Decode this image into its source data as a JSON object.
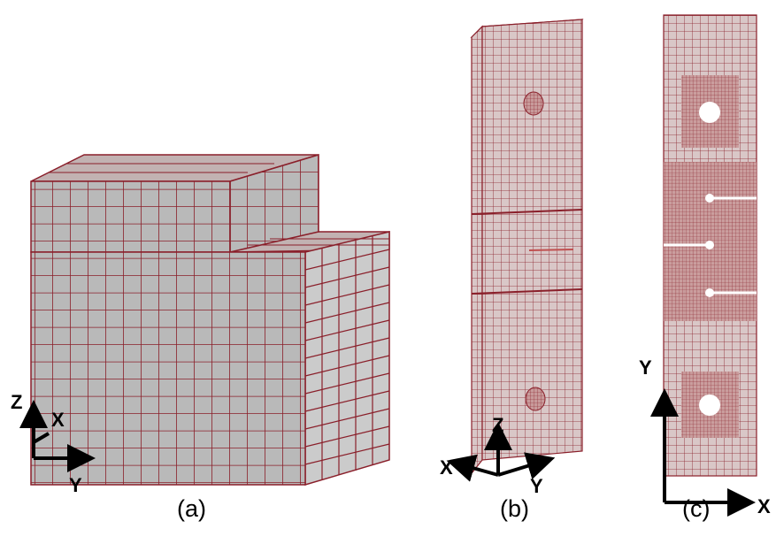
{
  "figure": {
    "panels": [
      {
        "caption": "(a)",
        "axes": [
          "Z",
          "X",
          "Y"
        ]
      },
      {
        "caption": "(b)",
        "axes": [
          "Z",
          "X",
          "Y"
        ]
      },
      {
        "caption": "(c)",
        "axes": [
          "Y",
          "X"
        ]
      }
    ]
  },
  "colors": {
    "face_front": "#b9b9b9",
    "face_side": "#cbcbcb",
    "face_top": "#c2b2b2",
    "mesh_line": "#8a1f2a",
    "mesh_fill": "#d9c7c7",
    "dense_fill": "#c89a9a",
    "axis": "#000000",
    "background": "#ffffff"
  }
}
